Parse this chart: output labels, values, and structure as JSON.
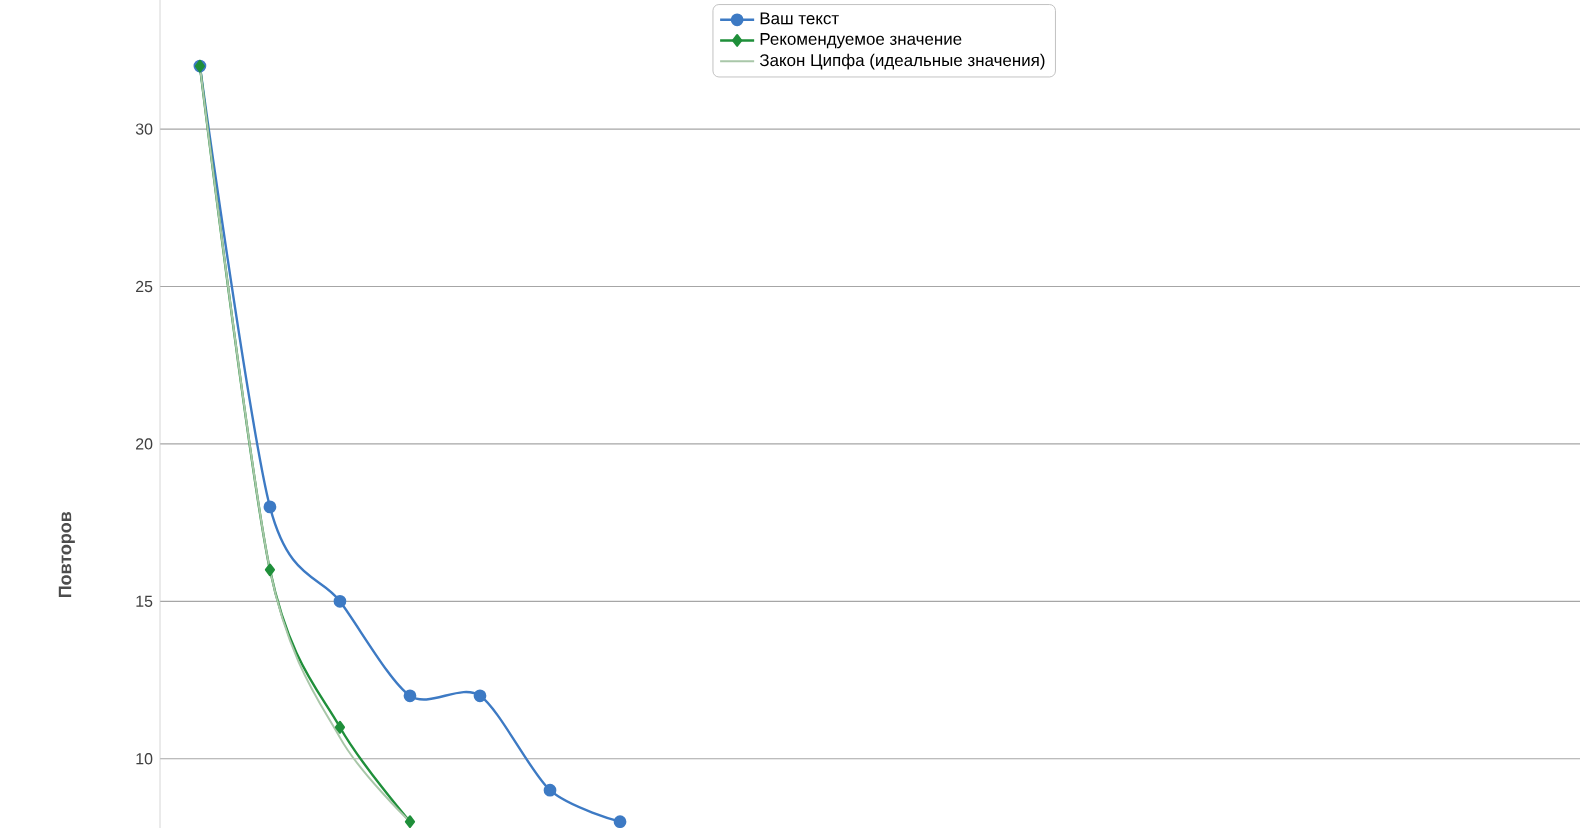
{
  "chart_data": {
    "type": "line",
    "ylabel": "Повторов",
    "categories": [
      null,
      null,
      null,
      null,
      null,
      null,
      null,
      null,
      null,
      null,
      null,
      null,
      null,
      null,
      null,
      null,
      null,
      null,
      null,
      null
    ],
    "series": [
      {
        "name": "Ваш текст",
        "color": "#3d7ac4",
        "marker": "circle",
        "values": [
          32,
          18,
          15,
          12,
          12,
          9,
          8,
          null,
          null,
          null,
          null,
          null,
          null,
          null,
          null,
          null,
          null,
          null,
          null,
          null
        ]
      },
      {
        "name": "Рекомендуемое значение",
        "color": "#1f8f3a",
        "marker": "diamond",
        "values": [
          32,
          16,
          11,
          8,
          null,
          null,
          null,
          null,
          null,
          null,
          null,
          null,
          null,
          null,
          null,
          null,
          null,
          null,
          null,
          null
        ]
      },
      {
        "name": "Закон Ципфа (идеальные значения)",
        "color": "#a9c7a9",
        "marker": "none",
        "values": [
          32,
          16,
          10.67,
          8,
          null,
          null,
          null,
          null,
          null,
          null,
          null,
          null,
          null,
          null,
          null,
          null,
          null,
          null,
          null,
          null
        ]
      }
    ],
    "ylim": [
      7.8,
      34.1
    ],
    "yticks": [
      10,
      15,
      20,
      25,
      30
    ],
    "grid": "y",
    "legend": "top"
  }
}
